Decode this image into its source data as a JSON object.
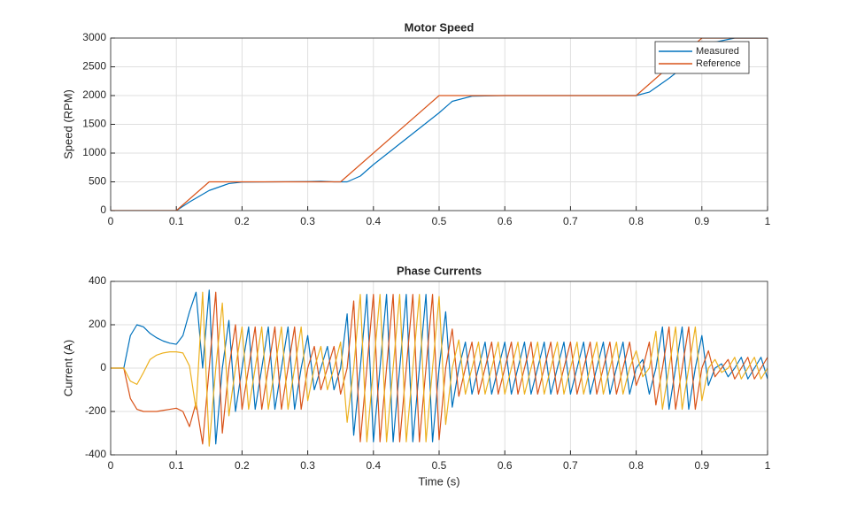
{
  "chart_data": [
    {
      "type": "line",
      "title": "Motor Speed",
      "ylabel": "Speed (RPM)",
      "xlim": [
        0,
        1
      ],
      "xticks": [
        0,
        0.1,
        0.2,
        0.3,
        0.4,
        0.5,
        0.6,
        0.7,
        0.8,
        0.9,
        1
      ],
      "ylim": [
        0,
        3000
      ],
      "yticks": [
        0,
        500,
        1000,
        1500,
        2000,
        2500,
        3000
      ],
      "grid": true,
      "legend": "top-right",
      "series": [
        {
          "name": "Measured",
          "color": "#0072BD",
          "x": [
            0,
            0.02,
            0.05,
            0.08,
            0.1,
            0.12,
            0.15,
            0.18,
            0.2,
            0.25,
            0.3,
            0.32,
            0.34,
            0.36,
            0.38,
            0.4,
            0.45,
            0.5,
            0.52,
            0.55,
            0.6,
            0.8,
            0.82,
            0.85,
            0.9,
            0.92,
            0.95,
            1
          ],
          "values": [
            0,
            -5,
            -15,
            -10,
            0,
            150,
            350,
            470,
            495,
            500,
            505,
            510,
            500,
            500,
            600,
            800,
            1250,
            1700,
            1900,
            1990,
            2000,
            2000,
            2060,
            2300,
            2750,
            2930,
            3000,
            3000
          ]
        },
        {
          "name": "Reference",
          "color": "#D95319",
          "x": [
            0,
            0.1,
            0.15,
            0.35,
            0.5,
            0.8,
            0.9,
            1
          ],
          "values": [
            0,
            0,
            500,
            500,
            2000,
            2000,
            3000,
            3000
          ]
        }
      ]
    },
    {
      "type": "line",
      "title": "Phase Currents",
      "ylabel": "Current (A)",
      "xlabel": "Time (s)",
      "xlim": [
        0,
        1
      ],
      "xticks": [
        0,
        0.1,
        0.2,
        0.3,
        0.4,
        0.5,
        0.6,
        0.7,
        0.8,
        0.9,
        1
      ],
      "ylim": [
        -400,
        400
      ],
      "yticks": [
        -400,
        -200,
        0,
        200,
        400
      ],
      "grid": true,
      "x": [
        0,
        0.01,
        0.02,
        0.03,
        0.04,
        0.05,
        0.06,
        0.07,
        0.08,
        0.09,
        0.1,
        0.11,
        0.12,
        0.13,
        0.14,
        0.15,
        0.16,
        0.17,
        0.18,
        0.19,
        0.2,
        0.21,
        0.22,
        0.23,
        0.24,
        0.25,
        0.26,
        0.27,
        0.28,
        0.29,
        0.3,
        0.31,
        0.32,
        0.33,
        0.34,
        0.35,
        0.36,
        0.37,
        0.38,
        0.39,
        0.4,
        0.41,
        0.42,
        0.43,
        0.44,
        0.45,
        0.46,
        0.47,
        0.48,
        0.49,
        0.5,
        0.51,
        0.52,
        0.53,
        0.54,
        0.55,
        0.56,
        0.57,
        0.58,
        0.59,
        0.6,
        0.61,
        0.62,
        0.63,
        0.64,
        0.65,
        0.66,
        0.67,
        0.68,
        0.69,
        0.7,
        0.71,
        0.72,
        0.73,
        0.74,
        0.75,
        0.76,
        0.77,
        0.78,
        0.79,
        0.8,
        0.81,
        0.82,
        0.83,
        0.84,
        0.85,
        0.86,
        0.87,
        0.88,
        0.89,
        0.9,
        0.91,
        0.92,
        0.93,
        0.94,
        0.95,
        0.96,
        0.97,
        0.98,
        0.99,
        1
      ],
      "series": [
        {
          "color": "#0072BD",
          "values": [
            0,
            0,
            0,
            150,
            200,
            190,
            160,
            140,
            125,
            115,
            110,
            150,
            260,
            350,
            0,
            360,
            -350,
            0,
            220,
            -200,
            0,
            190,
            -190,
            0,
            190,
            -190,
            0,
            190,
            -190,
            0,
            150,
            -100,
            0,
            100,
            -100,
            0,
            250,
            -310,
            0,
            340,
            -340,
            0,
            340,
            -340,
            0,
            340,
            -340,
            0,
            340,
            -340,
            0,
            260,
            -180,
            0,
            120,
            -120,
            0,
            120,
            -120,
            0,
            120,
            -120,
            0,
            120,
            -120,
            0,
            120,
            -120,
            0,
            120,
            -120,
            0,
            120,
            -120,
            0,
            120,
            -120,
            0,
            120,
            -120,
            0,
            40,
            -120,
            0,
            190,
            -190,
            0,
            190,
            -190,
            0,
            150,
            -80,
            0,
            20,
            -40,
            0,
            50,
            -50,
            0,
            50,
            -50
          ]
        },
        {
          "color": "#D95319",
          "values": [
            0,
            0,
            0,
            -140,
            -190,
            -200,
            -200,
            -200,
            -195,
            -190,
            -185,
            -200,
            -270,
            -160,
            -350,
            0,
            350,
            -300,
            0,
            200,
            -190,
            0,
            190,
            -190,
            0,
            190,
            -190,
            0,
            190,
            -190,
            0,
            100,
            -100,
            0,
            100,
            -120,
            0,
            310,
            -340,
            0,
            340,
            -340,
            0,
            340,
            -340,
            0,
            340,
            -340,
            0,
            340,
            -330,
            0,
            180,
            -130,
            0,
            120,
            -120,
            0,
            120,
            -120,
            0,
            120,
            -120,
            0,
            120,
            -120,
            0,
            120,
            -120,
            0,
            120,
            -120,
            0,
            120,
            -120,
            0,
            120,
            -120,
            0,
            120,
            -80,
            0,
            120,
            -170,
            0,
            190,
            -190,
            0,
            190,
            -190,
            0,
            80,
            -40,
            0,
            40,
            -50,
            0,
            50,
            -50,
            0,
            50
          ]
        },
        {
          "color": "#EDB120",
          "values": [
            0,
            0,
            0,
            -60,
            -75,
            -20,
            40,
            60,
            70,
            75,
            75,
            70,
            10,
            -190,
            350,
            -360,
            0,
            300,
            -220,
            0,
            190,
            -190,
            0,
            190,
            -190,
            0,
            190,
            -190,
            0,
            190,
            -150,
            0,
            100,
            -100,
            0,
            120,
            -250,
            0,
            340,
            -340,
            0,
            340,
            -340,
            0,
            340,
            -340,
            0,
            340,
            -340,
            0,
            330,
            -260,
            0,
            130,
            -120,
            0,
            120,
            -120,
            0,
            120,
            -120,
            0,
            120,
            -120,
            0,
            120,
            -120,
            0,
            120,
            -120,
            0,
            120,
            -120,
            0,
            120,
            -120,
            0,
            120,
            -120,
            0,
            80,
            -40,
            0,
            170,
            -190,
            0,
            190,
            -190,
            0,
            190,
            -150,
            0,
            40,
            -20,
            0,
            50,
            -50,
            0,
            50,
            -50,
            0
          ]
        }
      ]
    }
  ]
}
